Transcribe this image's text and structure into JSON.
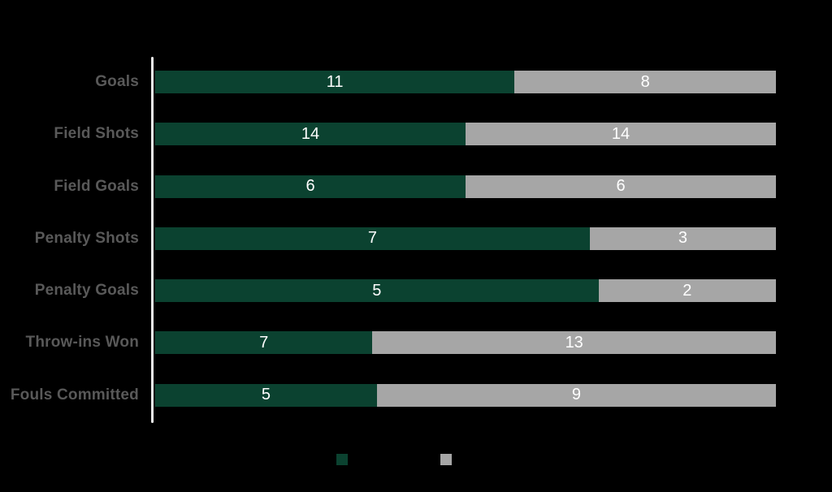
{
  "page": {
    "background_color": "#000000"
  },
  "chart_data": {
    "type": "bar",
    "orientation": "horizontal",
    "stacking": "100pct-stacked",
    "title": "",
    "xlabel": "",
    "ylabel": "",
    "categories": [
      "Goals",
      "Field Shots",
      "Field Goals",
      "Penalty Shots",
      "Penalty Goals",
      "Throw-ins Won",
      "Fouls Committed"
    ],
    "series": [
      {
        "name": "green-series",
        "color": "#0b4230",
        "values": [
          11,
          14,
          6,
          7,
          5,
          7,
          5
        ]
      },
      {
        "name": "gray-series",
        "color": "#a6a6a6",
        "values": [
          8,
          14,
          6,
          3,
          2,
          13,
          9
        ]
      }
    ],
    "data_labels_shown": true,
    "data_label_color": "#ffffff",
    "category_label_color": "#595959",
    "axis_line_color": "#ededed",
    "grid": false,
    "legend": {
      "position": "bottom",
      "entries": [
        {
          "label": "",
          "color": "#0b4230"
        },
        {
          "label": "",
          "color": "#a6a6a6"
        }
      ]
    }
  }
}
